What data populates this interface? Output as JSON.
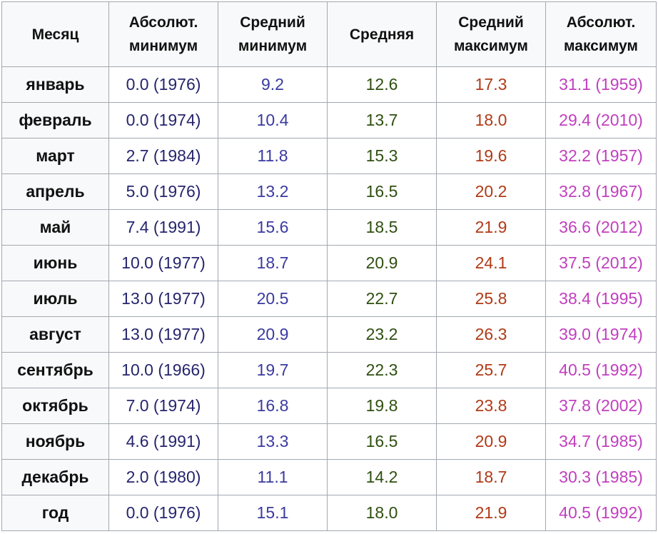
{
  "colors": {
    "abs_min": "#25256e",
    "avg_min": "#3a3aa0",
    "avg": "#2f4f10",
    "avg_max": "#b03a16",
    "abs_max": "#c03fbe",
    "border": "#a2a9b1",
    "header_bg": "#f8f9fa"
  },
  "headers": {
    "month": [
      "Месяц"
    ],
    "abs_min": [
      "Абсолют.",
      "минимум"
    ],
    "avg_min": [
      "Средний",
      "минимум"
    ],
    "avg": [
      "Средняя"
    ],
    "avg_max": [
      "Средний",
      "максимум"
    ],
    "abs_max": [
      "Абсолют.",
      "максимум"
    ]
  },
  "rows": [
    {
      "month": "январь",
      "abs_min": "0.0 (1976)",
      "avg_min": "9.2",
      "avg": "12.6",
      "avg_max": "17.3",
      "abs_max": "31.1 (1959)"
    },
    {
      "month": "февраль",
      "abs_min": "0.0 (1974)",
      "avg_min": "10.4",
      "avg": "13.7",
      "avg_max": "18.0",
      "abs_max": "29.4 (2010)"
    },
    {
      "month": "март",
      "abs_min": "2.7 (1984)",
      "avg_min": "11.8",
      "avg": "15.3",
      "avg_max": "19.6",
      "abs_max": "32.2 (1957)"
    },
    {
      "month": "апрель",
      "abs_min": "5.0 (1976)",
      "avg_min": "13.2",
      "avg": "16.5",
      "avg_max": "20.2",
      "abs_max": "32.8 (1967)"
    },
    {
      "month": "май",
      "abs_min": "7.4 (1991)",
      "avg_min": "15.6",
      "avg": "18.5",
      "avg_max": "21.9",
      "abs_max": "36.6 (2012)"
    },
    {
      "month": "июнь",
      "abs_min": "10.0 (1977)",
      "avg_min": "18.7",
      "avg": "20.9",
      "avg_max": "24.1",
      "abs_max": "37.5 (2012)"
    },
    {
      "month": "июль",
      "abs_min": "13.0 (1977)",
      "avg_min": "20.5",
      "avg": "22.7",
      "avg_max": "25.8",
      "abs_max": "38.4 (1995)"
    },
    {
      "month": "август",
      "abs_min": "13.0 (1977)",
      "avg_min": "20.9",
      "avg": "23.2",
      "avg_max": "26.3",
      "abs_max": "39.0 (1974)"
    },
    {
      "month": "сентябрь",
      "abs_min": "10.0 (1966)",
      "avg_min": "19.7",
      "avg": "22.3",
      "avg_max": "25.7",
      "abs_max": "40.5 (1992)"
    },
    {
      "month": "октябрь",
      "abs_min": "7.0 (1974)",
      "avg_min": "16.8",
      "avg": "19.8",
      "avg_max": "23.8",
      "abs_max": "37.8 (2002)"
    },
    {
      "month": "ноябрь",
      "abs_min": "4.6 (1991)",
      "avg_min": "13.3",
      "avg": "16.5",
      "avg_max": "20.9",
      "abs_max": "34.7 (1985)"
    },
    {
      "month": "декабрь",
      "abs_min": "2.0 (1980)",
      "avg_min": "11.1",
      "avg": "14.2",
      "avg_max": "18.7",
      "abs_max": "30.3 (1985)"
    },
    {
      "month": "год",
      "abs_min": "0.0 (1976)",
      "avg_min": "15.1",
      "avg": "18.0",
      "avg_max": "21.9",
      "abs_max": "40.5 (1992)"
    }
  ]
}
